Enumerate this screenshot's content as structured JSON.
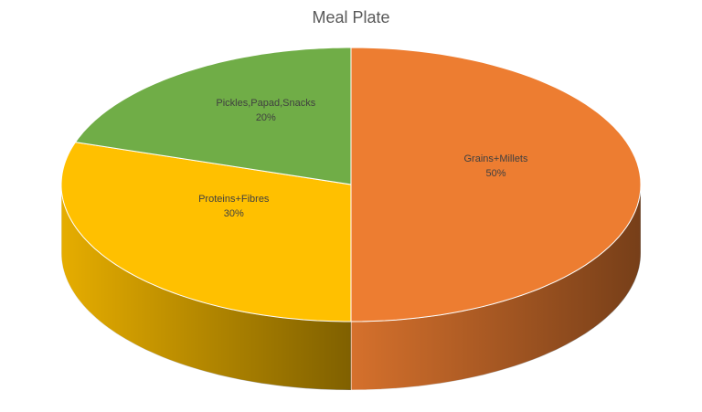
{
  "chart_data": {
    "type": "pie",
    "title": "Meal Plate",
    "categories": [
      "Grains+Millets",
      "Proteins+Fibres",
      "Pickles,Papad,Snacks"
    ],
    "values": [
      50,
      30,
      20
    ],
    "value_labels": [
      "50%",
      "30%",
      "20%"
    ],
    "colors": [
      "#ed7d31",
      "#ffc000",
      "#70ad47"
    ]
  }
}
